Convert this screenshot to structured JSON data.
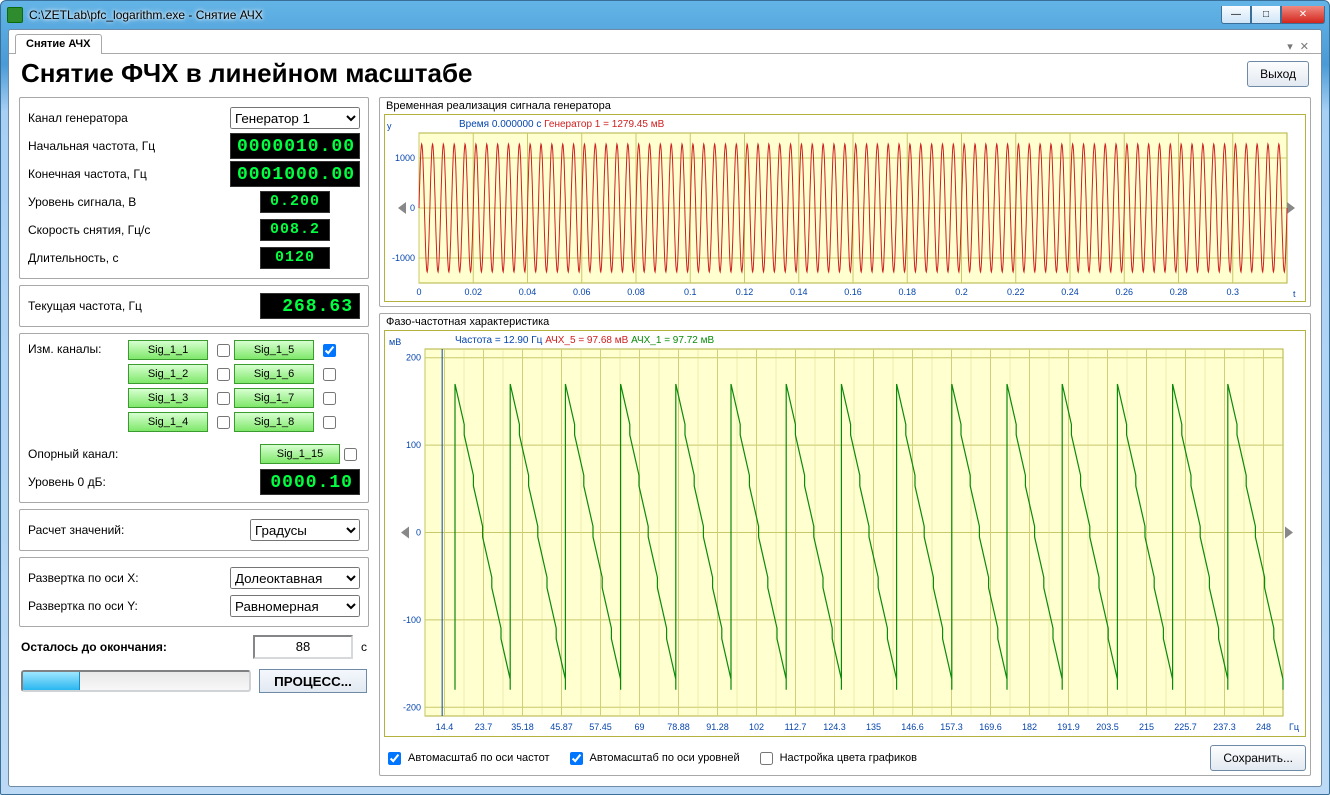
{
  "window": {
    "title": "C:\\ZETLab\\pfc_logarithm.exe - Снятие АЧХ"
  },
  "tab": {
    "label": "Снятие АЧХ"
  },
  "header": {
    "title": "Снятие ФЧХ в линейном масштабе",
    "exit_label": "Выход"
  },
  "params": {
    "channel_label": "Канал генератора",
    "channel_value": "Генератор 1",
    "f_start_label": "Начальная частота, Гц",
    "f_start_value": "0000010.00",
    "f_end_label": "Конечная частота, Гц",
    "f_end_value": "0001000.00",
    "level_label": "Уровень сигнала, В",
    "level_value": "0.200",
    "speed_label": "Скорость снятия, Гц/с",
    "speed_value": "008.2",
    "dur_label": "Длительность, с",
    "dur_value": "0120"
  },
  "current": {
    "label": "Текущая частота, Гц",
    "value": "268.63"
  },
  "channels": {
    "label": "Изм. каналы:",
    "list": [
      "Sig_1_1",
      "Sig_1_2",
      "Sig_1_3",
      "Sig_1_4",
      "Sig_1_5",
      "Sig_1_6",
      "Sig_1_7",
      "Sig_1_8"
    ],
    "checked_index": 4,
    "ref_label": "Опорный канал:",
    "ref_value": "Sig_1_15",
    "zero_label": "Уровень 0 дБ:",
    "zero_value": "0000.10"
  },
  "calc": {
    "label": "Расчет значений:",
    "value": "Градусы"
  },
  "sweep": {
    "x_label": "Развертка по оси X:",
    "x_value": "Долеоктавная",
    "y_label": "Развертка по оси Y:",
    "y_value": "Равномерная"
  },
  "remaining": {
    "label": "Осталось до окончания:",
    "value": "88",
    "unit": "с"
  },
  "process_btn": "ПРОЦЕСС...",
  "chart_top": {
    "title": "Временная реализация сигнала генератора",
    "legend_time": "Время 0.000000 с",
    "legend_gen": "Генератор 1 = 1279.45 мВ",
    "legend_gen_color": "#d02020",
    "y_label": "y",
    "x_label": "t",
    "line_color": "#d02020",
    "background_color": "#ffffd0",
    "grid_color": "#c8c86a",
    "y_ticks": [
      -1000,
      0,
      1000
    ],
    "x_ticks": [
      0,
      0.02,
      0.04,
      0.06,
      0.08,
      0.1,
      0.12,
      0.14,
      0.16,
      0.18,
      0.2,
      0.22,
      0.24,
      0.26,
      0.28,
      0.3
    ],
    "amplitude": 1280,
    "ylim": [
      -1500,
      1500
    ],
    "cycles": 80
  },
  "chart_bottom": {
    "title": "Фазо-частотная характеристика",
    "legend_freq": "Частота = 12.90 Гц",
    "legend_a5": "АЧХ_5 = 97.68 мВ",
    "legend_a5_color": "#d02020",
    "legend_a1": "АЧХ_1 = 97.72 мВ",
    "legend_a1_color": "#0a8a0a",
    "y_label": "мВ",
    "x_label": "Гц",
    "line_color": "#0a8a0a",
    "background_color": "#ffffd0",
    "grid_color": "#c8c86a",
    "y_ticks": [
      -200,
      -100,
      0,
      100,
      200
    ],
    "ylim": [
      -210,
      210
    ],
    "x_ticks_labels": [
      "14.4",
      "23.7",
      "35.18",
      "45.87",
      "57.45",
      "69",
      "78.88",
      "91.28",
      "102",
      "112.7",
      "124.3",
      "135",
      "146.6",
      "157.3",
      "169.6",
      "182",
      "191.9",
      "203.5",
      "215",
      "225.7",
      "237.3",
      "248"
    ],
    "sawtooth_start_x": 0.035,
    "sawtooth_cycles": 15,
    "sawtooth_high": 170,
    "sawtooth_low": -180
  },
  "bottom_controls": {
    "autoscale_x": "Автомасштаб по оси частот",
    "autoscale_y": "Автомасштаб по оси уровней",
    "colors": "Настройка цвета графиков",
    "save": "Сохранить...",
    "autoscale_x_checked": true,
    "autoscale_y_checked": true,
    "colors_checked": false
  }
}
